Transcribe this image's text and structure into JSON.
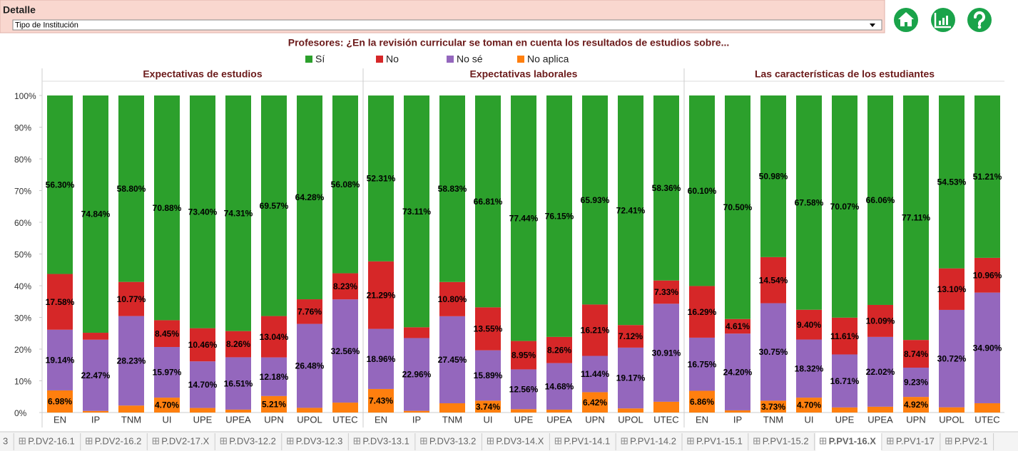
{
  "header": {
    "label": "Detalle",
    "dropdown": "Tipo de Institución"
  },
  "tabs": {
    "items": [
      "3",
      "P.DV2-16.1",
      "P.DV2-16.2",
      "P.DV2-17.X",
      "P.DV3-12.2",
      "P.DV3-12.3",
      "P.DV3-13.1",
      "P.DV3-13.2",
      "P.DV3-14.X",
      "P.PV1-14.1",
      "P.PV1-14.2",
      "P.PV1-15.1",
      "P.PV1-15.2",
      "P.PV1-16.X",
      "P.PV1-17",
      "P.PV2-1"
    ],
    "selected": 13
  },
  "chart_data": {
    "type": "stacked_bar",
    "title": "Profesores: ¿En la revisión curricular se toman en cuenta los resultados de estudios sobre...",
    "ylim": [
      0,
      100
    ],
    "yticks": [
      {
        "value": 0,
        "label": "0%"
      },
      {
        "value": 10,
        "label": "10%"
      },
      {
        "value": 20,
        "label": "20%"
      },
      {
        "value": 30,
        "label": "30%"
      },
      {
        "value": 40,
        "label": "40%"
      },
      {
        "value": 50,
        "label": "50%"
      },
      {
        "value": 60,
        "label": "60%"
      },
      {
        "value": 70,
        "label": "70%"
      },
      {
        "value": 80,
        "label": "80%"
      },
      {
        "value": 90,
        "label": "90%"
      },
      {
        "value": 100,
        "label": "100%"
      }
    ],
    "series": [
      {
        "name": "Sí",
        "color": "#2ca02c"
      },
      {
        "name": "No",
        "color": "#d62728"
      },
      {
        "name": "No sé",
        "color": "#9467bd"
      },
      {
        "name": "No aplica",
        "color": "#ff7f0e"
      }
    ],
    "panels": [
      {
        "title": "Expectativas de estudios",
        "categories": [
          "EN",
          "IP",
          "TNM",
          "UI",
          "UPE",
          "UPEA",
          "UPN",
          "UPOL",
          "UTEC"
        ],
        "series": [
          {
            "values": [
              56.3,
              74.84,
              58.8,
              70.88,
              73.4,
              74.31,
              69.57,
              64.28,
              56.08
            ],
            "value_labels": [
              "56.30%",
              "74.84%",
              "58.80%",
              "70.88%",
              "73.40%",
              "74.31%",
              "69.57%",
              "64.28%",
              "56.08%"
            ]
          },
          {
            "values": [
              17.58,
              2.19,
              10.77,
              8.45,
              10.46,
              8.26,
              13.04,
              7.76,
              8.23
            ],
            "value_labels": [
              "17.58%",
              null,
              "10.77%",
              "8.45%",
              "10.46%",
              "8.26%",
              "13.04%",
              "7.76%",
              "8.23%"
            ]
          },
          {
            "values": [
              19.14,
              22.47,
              28.23,
              15.97,
              14.7,
              16.51,
              12.18,
              26.48,
              32.56
            ],
            "value_labels": [
              "19.14%",
              "22.47%",
              "28.23%",
              "15.97%",
              "14.70%",
              "16.51%",
              "12.18%",
              "26.48%",
              "32.56%"
            ]
          },
          {
            "values": [
              6.98,
              0.5,
              2.2,
              4.7,
              1.44,
              0.92,
              5.21,
              1.48,
              3.13
            ],
            "value_labels": [
              "6.98%",
              null,
              null,
              "4.70%",
              null,
              null,
              "5.21%",
              null,
              null
            ]
          }
        ]
      },
      {
        "title": "Expectativas laborales",
        "categories": [
          "EN",
          "IP",
          "TNM",
          "UI",
          "UPE",
          "UPEA",
          "UPN",
          "UPOL",
          "UTEC"
        ],
        "series": [
          {
            "values": [
              52.31,
              73.11,
              58.83,
              66.81,
              77.44,
              76.15,
              65.93,
              72.41,
              58.36
            ],
            "value_labels": [
              "52.31%",
              "73.11%",
              "58.83%",
              "66.81%",
              "77.44%",
              "76.15%",
              "65.93%",
              "72.41%",
              "58.36%"
            ]
          },
          {
            "values": [
              21.29,
              3.4,
              10.8,
              13.55,
              8.95,
              8.26,
              16.21,
              7.12,
              7.33
            ],
            "value_labels": [
              "21.29%",
              null,
              "10.80%",
              "13.55%",
              "8.95%",
              "8.26%",
              "16.21%",
              "7.12%",
              "7.33%"
            ]
          },
          {
            "values": [
              18.96,
              22.96,
              27.45,
              15.89,
              12.56,
              14.68,
              11.44,
              19.17,
              30.91
            ],
            "value_labels": [
              "18.96%",
              "22.96%",
              "27.45%",
              "15.89%",
              "12.56%",
              "14.68%",
              "11.44%",
              "19.17%",
              "30.91%"
            ]
          },
          {
            "values": [
              7.43,
              0.53,
              2.92,
              3.74,
              1.05,
              0.91,
              6.42,
              1.3,
              3.4
            ],
            "value_labels": [
              "7.43%",
              null,
              null,
              "3.74%",
              null,
              null,
              "6.42%",
              null,
              null
            ]
          }
        ]
      },
      {
        "title": "Las características de los estudiantes",
        "categories": [
          "EN",
          "IP",
          "TNM",
          "UI",
          "UPE",
          "UPEA",
          "UPN",
          "UPOL",
          "UTEC"
        ],
        "series": [
          {
            "values": [
              60.1,
              70.5,
              50.98,
              67.58,
              70.07,
              66.06,
              77.11,
              54.53,
              51.21
            ],
            "value_labels": [
              "60.10%",
              "70.50%",
              "50.98%",
              "67.58%",
              "70.07%",
              "66.06%",
              "77.11%",
              "54.53%",
              "51.21%"
            ]
          },
          {
            "values": [
              16.29,
              4.61,
              14.54,
              9.4,
              11.61,
              10.09,
              8.74,
              13.1,
              10.96
            ],
            "value_labels": [
              "16.29%",
              "4.61%",
              "14.54%",
              "9.40%",
              "11.61%",
              "10.09%",
              "8.74%",
              "13.10%",
              "10.96%"
            ]
          },
          {
            "values": [
              16.75,
              24.2,
              30.75,
              18.32,
              16.71,
              22.02,
              9.23,
              30.72,
              34.9
            ],
            "value_labels": [
              "16.75%",
              "24.20%",
              "30.75%",
              "18.32%",
              "16.71%",
              "22.02%",
              "9.23%",
              "30.72%",
              "34.90%"
            ]
          },
          {
            "values": [
              6.86,
              0.69,
              3.73,
              4.7,
              1.61,
              1.83,
              4.92,
              1.65,
              2.93
            ],
            "value_labels": [
              "6.86%",
              null,
              "3.73%",
              "4.70%",
              null,
              null,
              "4.92%",
              null,
              null
            ]
          }
        ]
      }
    ]
  }
}
